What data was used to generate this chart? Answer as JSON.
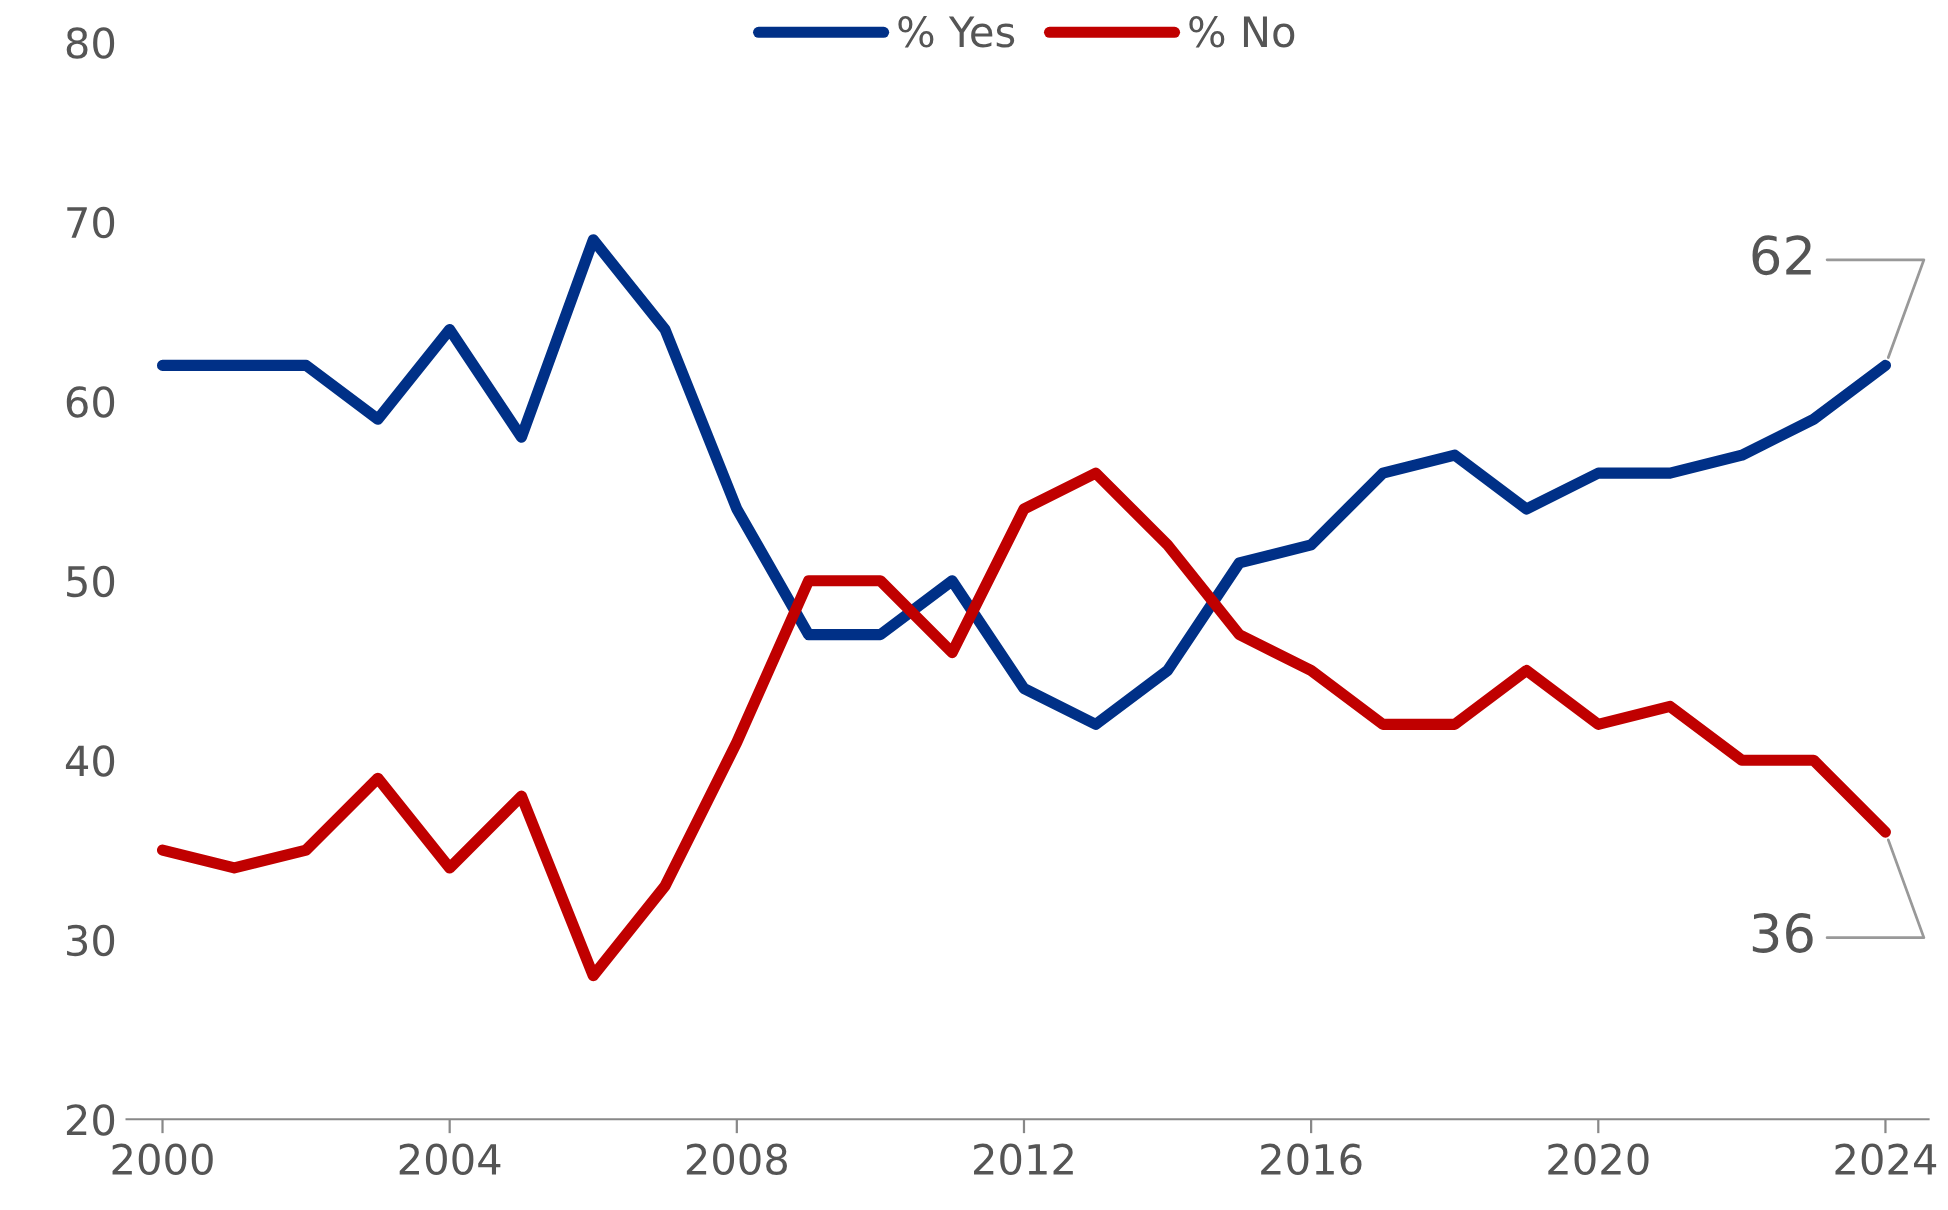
{
  "chart_data": {
    "type": "line",
    "x": [
      2000,
      2001,
      2002,
      2003,
      2004,
      2005,
      2006,
      2007,
      2008,
      2009,
      2010,
      2011,
      2012,
      2013,
      2014,
      2015,
      2016,
      2017,
      2018,
      2019,
      2020,
      2021,
      2022,
      2023,
      2024
    ],
    "series": [
      {
        "name": "% Yes",
        "color": "#003087",
        "values": [
          62,
          62,
          62,
          59,
          64,
          58,
          69,
          64,
          54,
          47,
          47,
          50,
          44,
          42,
          45,
          51,
          52,
          56,
          57,
          54,
          56,
          56,
          57,
          59,
          62
        ]
      },
      {
        "name": "% No",
        "color": "#c00000",
        "values": [
          35,
          34,
          35,
          39,
          34,
          38,
          28,
          33,
          41,
          50,
          50,
          46,
          54,
          56,
          52,
          47,
          45,
          42,
          42,
          45,
          42,
          43,
          40,
          40,
          36
        ]
      }
    ],
    "xlim": [
      1999.5,
      2024.6
    ],
    "xticks": [
      2000,
      2004,
      2008,
      2012,
      2016,
      2020,
      2024
    ],
    "ylim": [
      20,
      80
    ],
    "yticks": [
      20,
      30,
      40,
      50,
      60,
      70,
      80
    ],
    "annotations": [
      {
        "text": "62",
        "x": 2024,
        "y": 62
      },
      {
        "text": "36",
        "x": 2024,
        "y": 36
      }
    ],
    "grid": false,
    "legend": "top",
    "marker": "none",
    "line_style": "solid"
  }
}
